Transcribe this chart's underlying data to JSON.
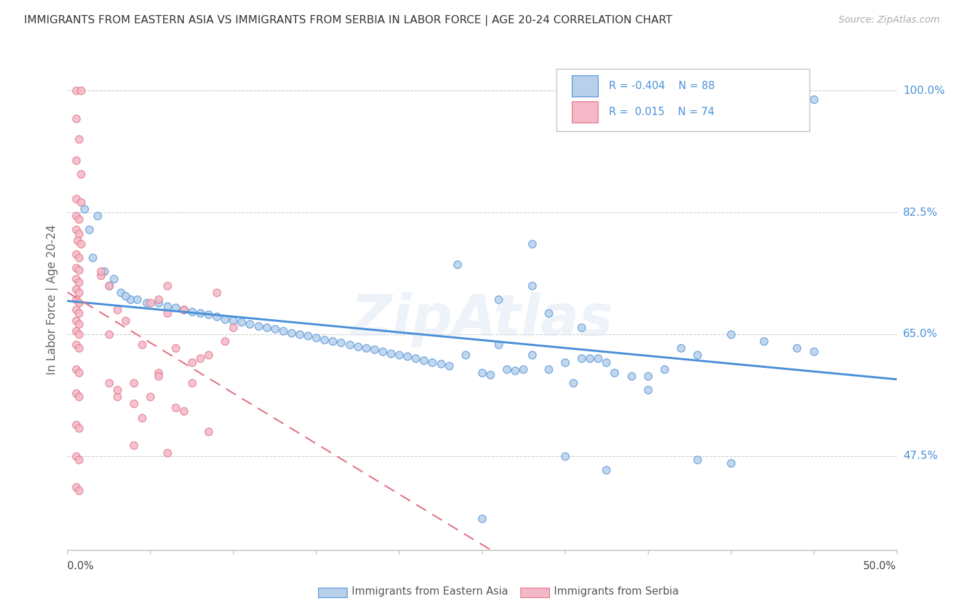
{
  "title": "IMMIGRANTS FROM EASTERN ASIA VS IMMIGRANTS FROM SERBIA IN LABOR FORCE | AGE 20-24 CORRELATION CHART",
  "source": "Source: ZipAtlas.com",
  "ylabel": "In Labor Force | Age 20-24",
  "color_blue": "#b8d0ea",
  "color_pink": "#f5b8c8",
  "line_blue": "#4a90d9",
  "line_pink": "#e07080",
  "watermark": "ZipAtlas",
  "xlim": [
    0.0,
    0.5
  ],
  "ylim": [
    0.34,
    1.06
  ],
  "ytick_values": [
    0.475,
    0.65,
    0.825,
    1.0
  ],
  "ytick_labels": [
    "47.5%",
    "65.0%",
    "82.5%",
    "100.0%"
  ],
  "legend_label_blue": "Immigrants from Eastern Asia",
  "legend_label_pink": "Immigrants from Serbia",
  "blue_x": [
    0.44,
    0.45,
    0.01,
    0.013,
    0.018,
    0.015,
    0.022,
    0.028,
    0.025,
    0.032,
    0.038,
    0.035,
    0.042,
    0.048,
    0.055,
    0.06,
    0.065,
    0.07,
    0.075,
    0.08,
    0.085,
    0.09,
    0.095,
    0.1,
    0.105,
    0.11,
    0.115,
    0.12,
    0.125,
    0.13,
    0.135,
    0.14,
    0.145,
    0.15,
    0.155,
    0.16,
    0.165,
    0.17,
    0.175,
    0.18,
    0.185,
    0.19,
    0.195,
    0.2,
    0.205,
    0.21,
    0.215,
    0.22,
    0.225,
    0.23,
    0.235,
    0.24,
    0.25,
    0.255,
    0.26,
    0.265,
    0.27,
    0.275,
    0.28,
    0.29,
    0.3,
    0.31,
    0.315,
    0.32,
    0.325,
    0.33,
    0.34,
    0.35,
    0.36,
    0.3,
    0.325,
    0.37,
    0.38,
    0.4,
    0.42,
    0.44,
    0.45,
    0.38,
    0.4,
    0.25,
    0.28,
    0.305,
    0.35,
    0.29,
    0.31,
    0.28,
    0.26
  ],
  "blue_y": [
    0.988,
    0.988,
    0.83,
    0.8,
    0.82,
    0.76,
    0.74,
    0.73,
    0.72,
    0.71,
    0.7,
    0.705,
    0.7,
    0.695,
    0.695,
    0.69,
    0.688,
    0.685,
    0.682,
    0.68,
    0.678,
    0.675,
    0.672,
    0.67,
    0.668,
    0.665,
    0.662,
    0.66,
    0.658,
    0.655,
    0.652,
    0.65,
    0.648,
    0.645,
    0.642,
    0.64,
    0.638,
    0.635,
    0.632,
    0.63,
    0.628,
    0.625,
    0.622,
    0.62,
    0.618,
    0.615,
    0.612,
    0.61,
    0.608,
    0.605,
    0.75,
    0.62,
    0.595,
    0.592,
    0.635,
    0.6,
    0.598,
    0.6,
    0.62,
    0.6,
    0.61,
    0.615,
    0.615,
    0.615,
    0.61,
    0.595,
    0.59,
    0.59,
    0.6,
    0.475,
    0.455,
    0.63,
    0.62,
    0.65,
    0.64,
    0.63,
    0.625,
    0.47,
    0.465,
    0.385,
    0.78,
    0.58,
    0.57,
    0.68,
    0.66,
    0.72,
    0.7
  ],
  "pink_x": [
    0.005,
    0.008,
    0.005,
    0.007,
    0.005,
    0.008,
    0.005,
    0.008,
    0.005,
    0.007,
    0.005,
    0.007,
    0.006,
    0.008,
    0.005,
    0.007,
    0.005,
    0.007,
    0.005,
    0.007,
    0.005,
    0.007,
    0.005,
    0.007,
    0.005,
    0.007,
    0.005,
    0.007,
    0.005,
    0.007,
    0.005,
    0.007,
    0.005,
    0.007,
    0.005,
    0.007,
    0.005,
    0.007,
    0.005,
    0.007,
    0.005,
    0.007,
    0.02,
    0.025,
    0.025,
    0.03,
    0.04,
    0.06,
    0.065,
    0.05,
    0.055,
    0.07,
    0.045,
    0.09,
    0.03,
    0.035,
    0.02,
    0.06,
    0.06,
    0.1,
    0.095,
    0.085,
    0.04,
    0.05,
    0.075,
    0.055,
    0.065,
    0.08,
    0.025,
    0.045,
    0.07,
    0.085,
    0.03,
    0.04,
    0.055,
    0.075
  ],
  "pink_y": [
    1.0,
    1.0,
    0.96,
    0.93,
    0.9,
    0.88,
    0.845,
    0.84,
    0.82,
    0.815,
    0.8,
    0.795,
    0.785,
    0.78,
    0.765,
    0.76,
    0.745,
    0.742,
    0.73,
    0.725,
    0.715,
    0.71,
    0.7,
    0.695,
    0.685,
    0.68,
    0.67,
    0.665,
    0.655,
    0.65,
    0.635,
    0.63,
    0.6,
    0.595,
    0.565,
    0.56,
    0.52,
    0.515,
    0.475,
    0.47,
    0.43,
    0.425,
    0.735,
    0.72,
    0.58,
    0.56,
    0.49,
    0.48,
    0.545,
    0.695,
    0.7,
    0.685,
    0.53,
    0.71,
    0.685,
    0.67,
    0.74,
    0.72,
    0.68,
    0.66,
    0.64,
    0.62,
    0.58,
    0.56,
    0.61,
    0.595,
    0.63,
    0.615,
    0.65,
    0.635,
    0.54,
    0.51,
    0.57,
    0.55,
    0.59,
    0.58
  ]
}
